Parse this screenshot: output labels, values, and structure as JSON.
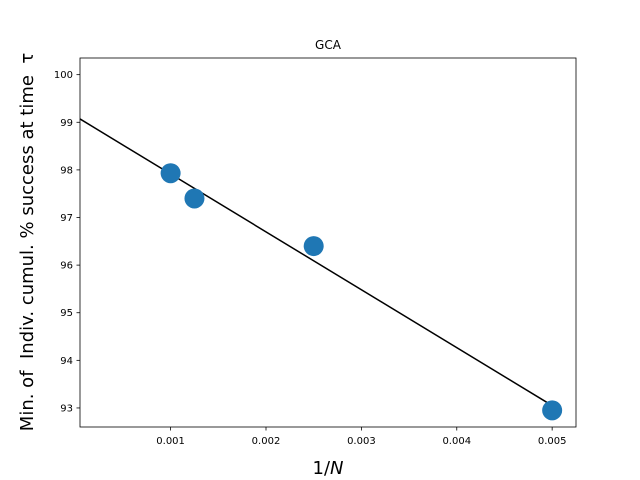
{
  "chart_data": {
    "type": "scatter",
    "title": "GCA",
    "xlabel": "1/N",
    "ylabel": "Min. of  Indiv. cumul. % success at time  τ",
    "xlim": [
      5e-05,
      0.00525
    ],
    "ylim": [
      92.6,
      100.35
    ],
    "xticks": [
      0.001,
      0.002,
      0.003,
      0.004,
      0.005
    ],
    "xtick_labels": [
      "0.001",
      "0.002",
      "0.003",
      "0.004",
      "0.005"
    ],
    "yticks": [
      93,
      94,
      95,
      96,
      97,
      98,
      99,
      100
    ],
    "ytick_labels": [
      "93",
      "94",
      "95",
      "96",
      "97",
      "98",
      "99",
      "100"
    ],
    "grid": false,
    "series": [
      {
        "kind": "scatter",
        "color": "#1f77b4",
        "points": [
          {
            "x": 0.001,
            "y": 97.93
          },
          {
            "x": 0.00125,
            "y": 97.4
          },
          {
            "x": 0.0025,
            "y": 96.4
          },
          {
            "x": 0.005,
            "y": 92.95
          }
        ]
      },
      {
        "kind": "line",
        "color": "#000000",
        "points": [
          {
            "x": 5e-05,
            "y": 99.07
          },
          {
            "x": 0.005,
            "y": 93.05
          }
        ]
      }
    ]
  }
}
